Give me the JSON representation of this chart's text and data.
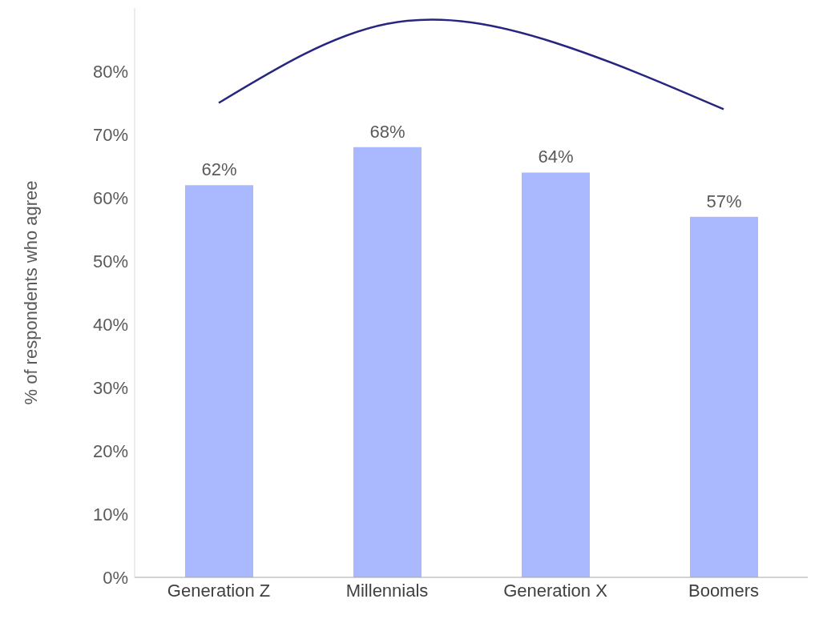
{
  "chart_data": {
    "type": "bar",
    "ylabel": "% of respondents who agree",
    "categories": [
      "Generation Z",
      "Millennials",
      "Generation X",
      "Boomers"
    ],
    "series": [
      {
        "color": "#aab9fe",
        "values": [
          62,
          68,
          64,
          57
        ],
        "value_labels": [
          "62%",
          "68%",
          "64%",
          "57%"
        ]
      },
      {
        "type": "line",
        "color": "#262680",
        "values": [
          75,
          87.5,
          84.5,
          74
        ]
      }
    ],
    "ylim": [
      0,
      90
    ],
    "yticks": [
      {
        "value": 0,
        "label": "0%"
      },
      {
        "value": 10,
        "label": "10%"
      },
      {
        "value": 20,
        "label": "20%"
      },
      {
        "value": 30,
        "label": "30%"
      },
      {
        "value": 40,
        "label": "40%"
      },
      {
        "value": 50,
        "label": "50%"
      },
      {
        "value": 60,
        "label": "60%"
      },
      {
        "value": 70,
        "label": "70%"
      },
      {
        "value": 80,
        "label": "80%"
      }
    ],
    "grid": false,
    "legend": false,
    "marker": "none"
  }
}
